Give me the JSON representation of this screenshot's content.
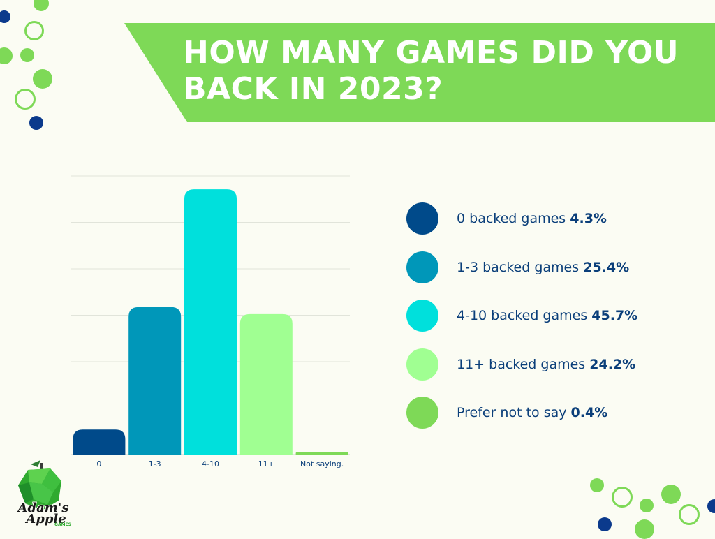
{
  "title": {
    "line1": "HOW MANY GAMES DID YOU",
    "line2": "BACK IN 2023?"
  },
  "colors": {
    "banner": "#7ed957",
    "background": "#fbfcf3",
    "text_dark_blue": "#0b3f7a",
    "deco_green": "#7ed957",
    "deco_blue": "#0b3a8c"
  },
  "chart_data": {
    "type": "bar",
    "categories": [
      "0",
      "1-3",
      "4-10",
      "11+",
      "Not saying."
    ],
    "values": [
      4.3,
      25.4,
      45.7,
      24.2,
      0.4
    ],
    "colors": [
      "#004a8a",
      "#0097b9",
      "#00e0dc",
      "#a0ff92",
      "#7ed957"
    ],
    "ylim": [
      0,
      48
    ],
    "grid": true,
    "y_tick_labels_shown": false,
    "legend_placement": "right"
  },
  "legend": [
    {
      "label": "0 backed games",
      "pct": "4.3%",
      "color": "#004a8a"
    },
    {
      "label": "1-3 backed games",
      "pct": "25.4%",
      "color": "#0097b9"
    },
    {
      "label": "4-10 backed games",
      "pct": "45.7%",
      "color": "#00e0dc"
    },
    {
      "label": "11+ backed games",
      "pct": "24.2%",
      "color": "#a0ff92"
    },
    {
      "label": "Prefer not to say",
      "pct": "0.4%",
      "color": "#7ed957"
    }
  ],
  "logo": {
    "line1": "Adam's",
    "line2": "Apple",
    "line3": "GAMES",
    "icon": "green-apple-logo-icon"
  }
}
